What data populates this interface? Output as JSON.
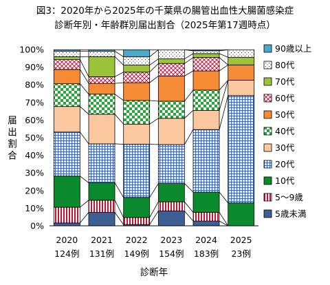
{
  "chart_data": {
    "type": "bar",
    "stacked": true,
    "title": "図3：2020年から2025年の千葉県の腸管出血性大腸菌感染症",
    "subtitle": "診断年別・年齢群別届出割合（2025年第17週時点）",
    "xlabel": "診断年",
    "ylabel": "届出割合",
    "ylim": [
      0,
      100
    ],
    "yticks": [
      "0%",
      "10%",
      "20%",
      "30%",
      "40%",
      "50%",
      "60%",
      "70%",
      "80%",
      "90%",
      "100%"
    ],
    "categories": [
      "2020",
      "2021",
      "2022",
      "2023",
      "2024",
      "2025"
    ],
    "category_counts": [
      "124例",
      "131例",
      "149例",
      "154例",
      "183例",
      "23例"
    ],
    "legend_position": "right",
    "series": [
      {
        "name": "5歳未満",
        "color": "#3d5f94",
        "pattern": "solid",
        "values": [
          1.6,
          7.6,
          0.7,
          8.4,
          2.7,
          0.0
        ]
      },
      {
        "name": "5～9歳",
        "color": "#c8102e",
        "pattern": "vstripe",
        "values": [
          8.9,
          6.9,
          4.0,
          5.2,
          4.9,
          0.0
        ]
      },
      {
        "name": "10代",
        "color": "#0a8a2c",
        "pattern": "solid",
        "values": [
          17.7,
          9.9,
          11.4,
          10.4,
          11.5,
          13.0
        ]
      },
      {
        "name": "20代",
        "color": "#2f6bd1",
        "pattern": "grid",
        "values": [
          25.0,
          22.1,
          30.2,
          22.1,
          35.5,
          60.9
        ]
      },
      {
        "name": "30代",
        "color": "#fac79e",
        "pattern": "solid",
        "values": [
          14.5,
          16.8,
          11.4,
          14.9,
          10.9,
          8.7
        ]
      },
      {
        "name": "40代",
        "color": "#23a836",
        "pattern": "checker",
        "values": [
          12.9,
          11.4,
          13.4,
          9.7,
          11.5,
          0.0
        ]
      },
      {
        "name": "50代",
        "color": "#f58c35",
        "pattern": "solid",
        "values": [
          8.1,
          6.1,
          10.1,
          14.3,
          10.9,
          8.7
        ]
      },
      {
        "name": "60代",
        "color": "#c0143c",
        "pattern": "diagcross",
        "values": [
          5.6,
          3.8,
          6.0,
          7.1,
          7.6,
          0.0
        ]
      },
      {
        "name": "70代",
        "color": "#9bc43a",
        "pattern": "solid",
        "values": [
          1.6,
          11.4,
          4.0,
          2.6,
          2.2,
          4.3
        ]
      },
      {
        "name": "80代",
        "color": "#222222",
        "pattern": "dots",
        "values": [
          3.2,
          3.1,
          4.7,
          5.2,
          1.6,
          4.3
        ]
      },
      {
        "name": "90歳以上",
        "color": "#4aa8c9",
        "pattern": "solid",
        "values": [
          0.8,
          0.8,
          4.0,
          0.0,
          0.5,
          0.0
        ]
      }
    ]
  }
}
